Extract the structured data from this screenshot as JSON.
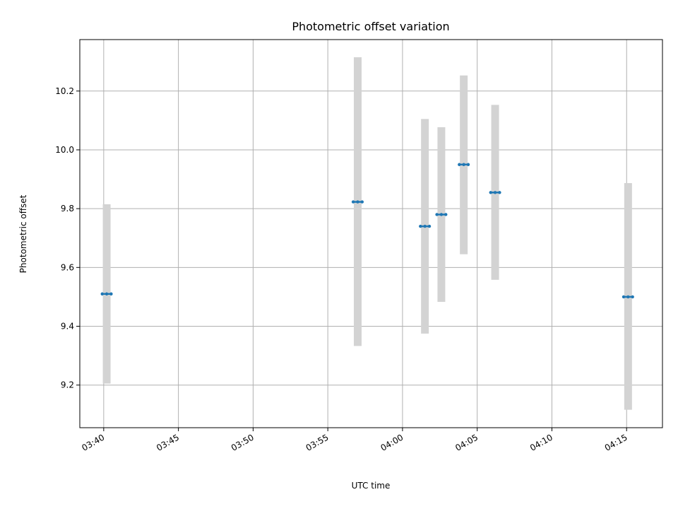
{
  "chart_data": {
    "type": "scatter",
    "title": "Photometric offset variation",
    "xlabel": "UTC time",
    "ylabel": "Photometric offset",
    "x_ticks": [
      "03:40",
      "03:45",
      "03:50",
      "03:55",
      "04:00",
      "04:05",
      "04:10",
      "04:15"
    ],
    "y_ticks": [
      "9.2",
      "9.4",
      "9.6",
      "9.8",
      "10.0",
      "10.2"
    ],
    "xlim": [
      "03:38:24",
      "04:17:24"
    ],
    "ylim": [
      9.055,
      10.375
    ],
    "grid": true,
    "colors": {
      "marker": "#1f77b4",
      "errorbar": "#d3d3d3",
      "grid": "#b0b0b0"
    },
    "points": [
      {
        "start": "03:39:54",
        "end": "03:40:30",
        "value": 9.51,
        "low": 9.205,
        "high": 9.815
      },
      {
        "start": "03:56:42",
        "end": "03:57:18",
        "value": 9.823,
        "low": 9.333,
        "high": 10.315
      },
      {
        "start": "04:01:12",
        "end": "04:01:48",
        "value": 9.74,
        "low": 9.375,
        "high": 10.105
      },
      {
        "start": "04:02:18",
        "end": "04:02:54",
        "value": 9.78,
        "low": 9.483,
        "high": 10.077
      },
      {
        "start": "04:03:48",
        "end": "04:04:24",
        "value": 9.95,
        "low": 9.645,
        "high": 10.253
      },
      {
        "start": "04:05:54",
        "end": "04:06:30",
        "value": 9.855,
        "low": 9.558,
        "high": 10.153
      },
      {
        "start": "04:14:48",
        "end": "04:15:24",
        "value": 9.5,
        "low": 9.116,
        "high": 9.887
      }
    ]
  }
}
